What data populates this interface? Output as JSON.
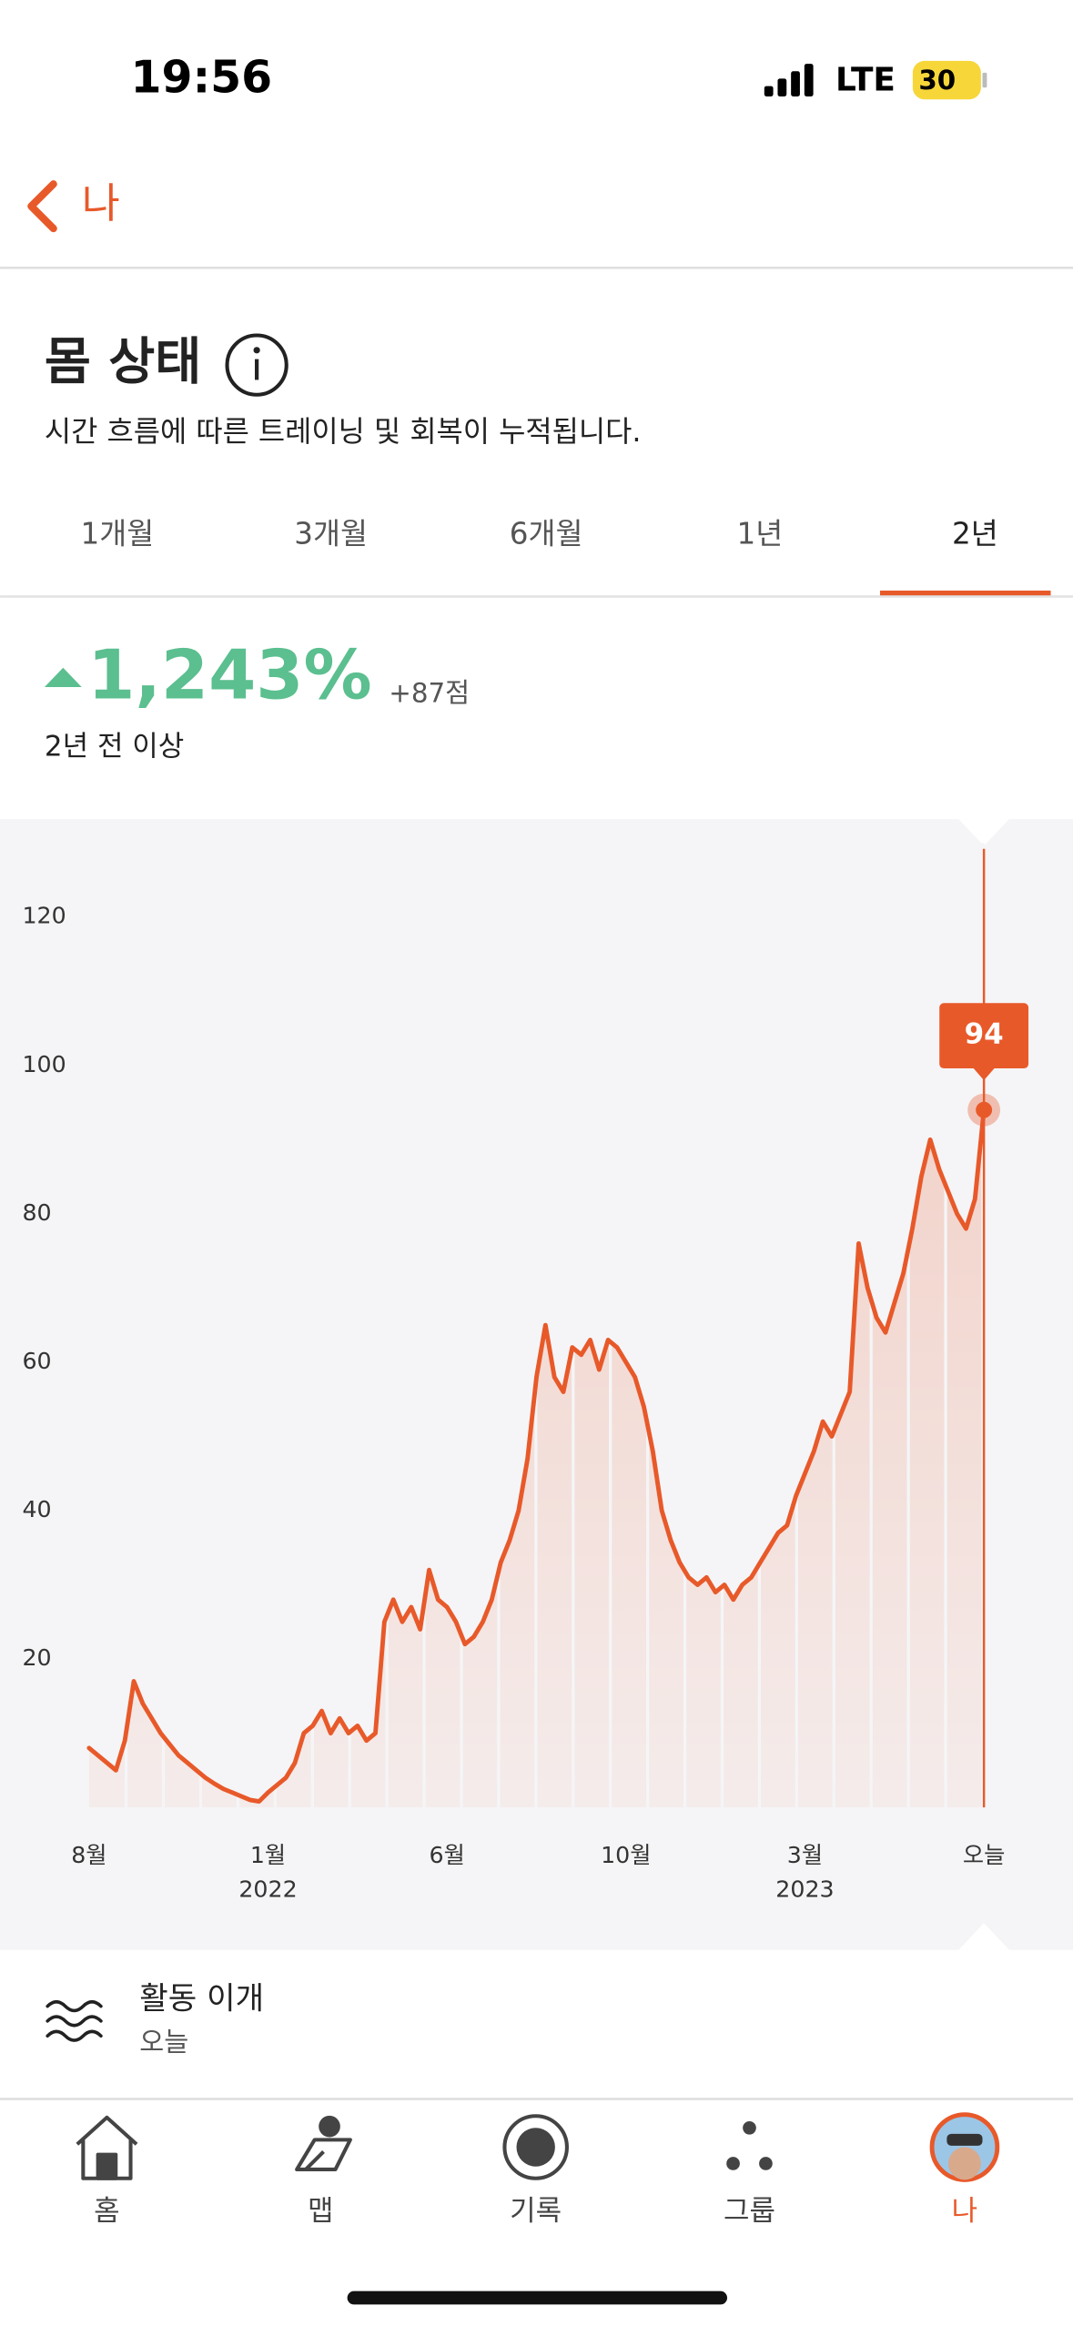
{
  "status_bar": {
    "time": "19:56",
    "network": "LTE",
    "battery": "30"
  },
  "nav": {
    "back_label": "나"
  },
  "header": {
    "title": "몸 상태",
    "subtitle": "시간 흐름에 따른 트레이닝 및 회복이 누적됩니다."
  },
  "tabs": [
    "1개월",
    "3개월",
    "6개월",
    "1년",
    "2년"
  ],
  "selected_tab": 4,
  "summary": {
    "change": "1,243%",
    "points": "+87점",
    "caption": "2년 전 이상"
  },
  "chart_data": {
    "type": "line",
    "color": "#e8592a",
    "x": [
      0,
      1,
      2,
      3,
      4,
      5,
      6,
      7,
      8,
      9,
      10,
      11,
      12,
      13,
      14,
      15,
      16,
      17,
      18,
      19,
      20,
      21,
      22,
      23,
      24,
      25,
      26,
      27,
      28,
      29,
      30,
      31,
      32,
      33,
      34,
      35,
      36,
      37,
      38,
      39,
      40,
      41,
      42,
      43,
      44,
      45,
      46,
      47,
      48,
      49,
      50,
      51,
      52,
      53,
      54,
      55,
      56,
      57,
      58,
      59,
      60,
      61,
      62,
      63,
      64,
      65,
      66,
      67,
      68,
      69,
      70,
      71,
      72,
      73,
      74,
      75,
      76,
      77,
      78,
      79,
      80,
      81,
      82,
      83,
      84,
      85,
      86,
      87,
      88,
      89,
      90,
      91,
      92,
      93,
      94,
      95,
      96,
      97,
      98,
      99,
      100
    ],
    "values": [
      8,
      7,
      6,
      5,
      9,
      17,
      14,
      12,
      10,
      8.5,
      7,
      6,
      5,
      4,
      3.2,
      2.5,
      2,
      1.5,
      1,
      0.8,
      2,
      3,
      4,
      6,
      10,
      11,
      13,
      10,
      12,
      10,
      11,
      9,
      10,
      25,
      28,
      25,
      27,
      24,
      32,
      28,
      27,
      25,
      22,
      23,
      25,
      28,
      33,
      36,
      40,
      47,
      58,
      65,
      58,
      56,
      62,
      61,
      63,
      59,
      63,
      62,
      60,
      58,
      54,
      48,
      40,
      36,
      33,
      31,
      30,
      31,
      29,
      30,
      28,
      30,
      31,
      33,
      35,
      37,
      38,
      42,
      45,
      48,
      52,
      50,
      53,
      56,
      76,
      70,
      66,
      64,
      68,
      72,
      78,
      85,
      90,
      86,
      83,
      80,
      78,
      82,
      94
    ],
    "xlim": [
      0,
      100
    ],
    "ylim": [
      0,
      130
    ],
    "yticks": [
      20,
      40,
      60,
      80,
      100,
      120
    ],
    "xticks": [
      {
        "value": 0,
        "label": "8월"
      },
      {
        "value": 20,
        "label": "1월",
        "year": "2022"
      },
      {
        "value": 40,
        "label": "6월"
      },
      {
        "value": 60,
        "label": "10월"
      },
      {
        "value": 80,
        "label": "3월",
        "year": "2023"
      },
      {
        "value": 100,
        "label": "오늘"
      }
    ],
    "callout": 94
  },
  "activity": {
    "title": "활동 이개",
    "subtitle": "오늘"
  },
  "tab_bar": [
    "홈",
    "맵",
    "기록",
    "그룹",
    "나"
  ],
  "tab_bar_active": 4
}
